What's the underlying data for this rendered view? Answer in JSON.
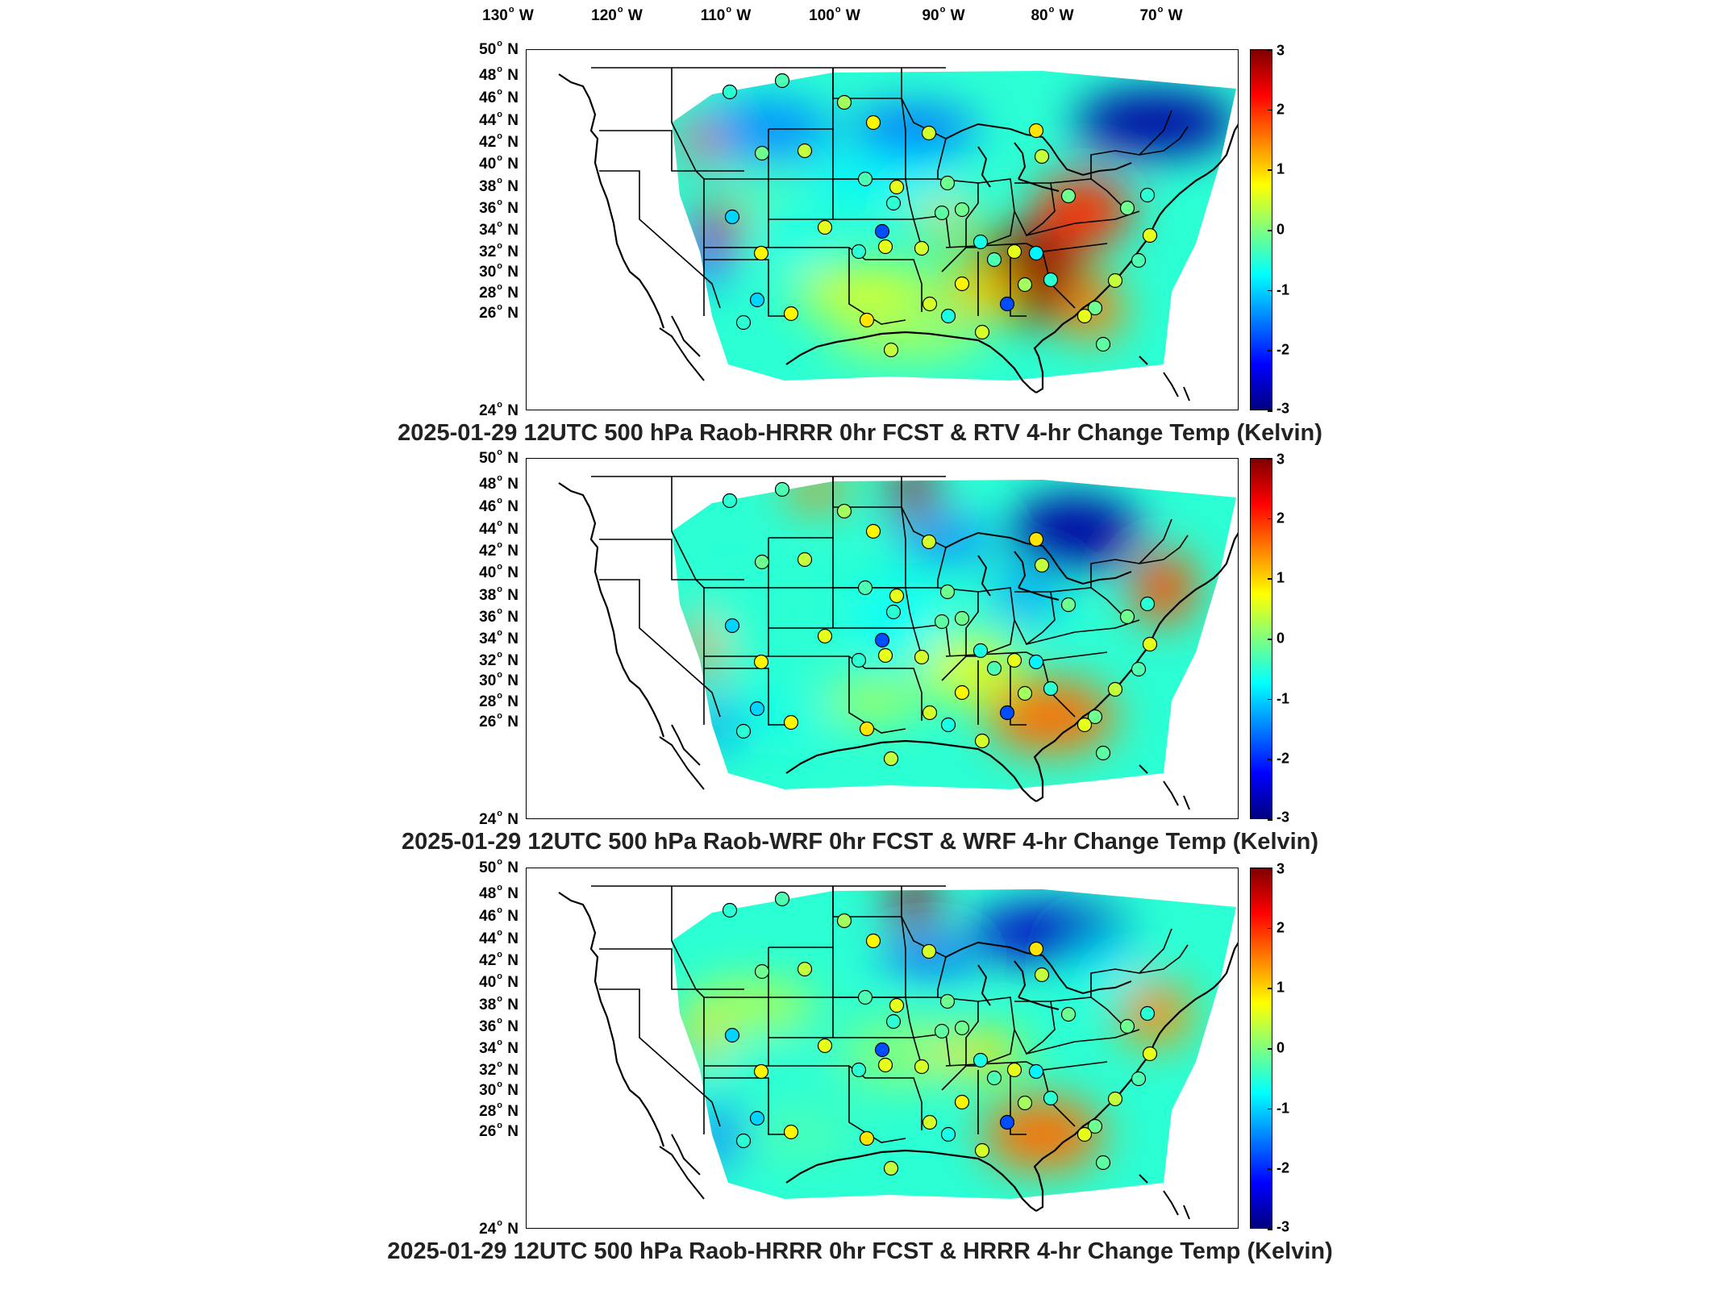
{
  "longitude_labels": [
    {
      "deg": "130",
      "hem": "W"
    },
    {
      "deg": "120",
      "hem": "W"
    },
    {
      "deg": "110",
      "hem": "W"
    },
    {
      "deg": "100",
      "hem": "W"
    },
    {
      "deg": "90",
      "hem": "W"
    },
    {
      "deg": "80",
      "hem": "W"
    },
    {
      "deg": "70",
      "hem": "W"
    }
  ],
  "latitude_labels": [
    {
      "deg": "50",
      "hem": "N"
    },
    {
      "deg": "48",
      "hem": "N"
    },
    {
      "deg": "46",
      "hem": "N"
    },
    {
      "deg": "44",
      "hem": "N"
    },
    {
      "deg": "42",
      "hem": "N"
    },
    {
      "deg": "40",
      "hem": "N"
    },
    {
      "deg": "38",
      "hem": "N"
    },
    {
      "deg": "36",
      "hem": "N"
    },
    {
      "deg": "34",
      "hem": "N"
    },
    {
      "deg": "32",
      "hem": "N"
    },
    {
      "deg": "30",
      "hem": "N"
    },
    {
      "deg": "28",
      "hem": "N"
    },
    {
      "deg": "26",
      "hem": "N"
    },
    {
      "deg": "24",
      "hem": "N"
    }
  ],
  "colorbar": {
    "unit": "Kelvin",
    "range": [
      -3,
      3
    ],
    "ticks": [
      "3",
      "2",
      "1",
      "0",
      "-1",
      "-2",
      "-3"
    ],
    "colormap": "jet",
    "colors": [
      "#00007f",
      "#0000ff",
      "#007fff",
      "#00ffff",
      "#7fff7f",
      "#ffff00",
      "#ff7f00",
      "#ff0000",
      "#7f0000"
    ]
  },
  "panels": [
    {
      "title": "2025-01-29 12UTC 500 hPa Raob-HRRR 0hr FCST & RTV 4-hr Change Temp (Kelvin)",
      "variant": "rtv"
    },
    {
      "title": "2025-01-29 12UTC 500 hPa Raob-WRF 0hr FCST & WRF 4-hr Change Temp (Kelvin)",
      "variant": "wrf"
    },
    {
      "title": "2025-01-29 12UTC 500 hPa Raob-HRRR 0hr FCST & HRRR 4-hr Change Temp (Kelvin)",
      "variant": "hrrr"
    }
  ]
}
